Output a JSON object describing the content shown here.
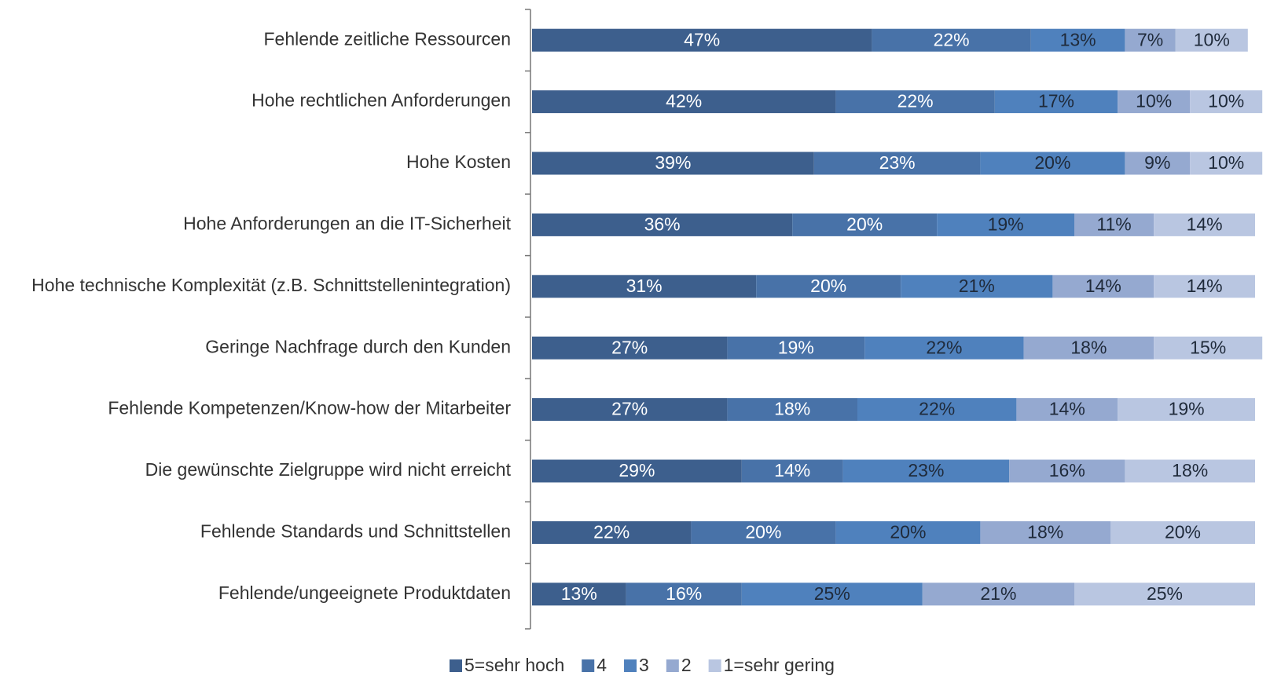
{
  "chart_data": {
    "type": "stacked_barh",
    "categories": [
      "Fehlende zeitliche Ressourcen",
      "Hohe rechtlichen Anforderungen",
      "Hohe Kosten",
      "Hohe Anforderungen an die IT-Sicherheit",
      "Hohe technische Komplexität (z.B. Schnittstellenintegration)",
      "Geringe Nachfrage durch den Kunden",
      "Fehlende Kompetenzen/Know-how der Mitarbeiter",
      "Die gewünschte Zielgruppe wird nicht erreicht",
      "Fehlende Standards und Schnittstellen",
      "Fehlende/ungeeignete Produktdaten"
    ],
    "series": [
      {
        "name": "5=sehr hoch",
        "color": "#3d5f8d",
        "label_color": "#ffffff",
        "values": [
          47,
          42,
          39,
          36,
          31,
          27,
          27,
          29,
          22,
          13
        ],
        "value_labels": [
          "47%",
          "42%",
          "39%",
          "36%",
          "31%",
          "27%",
          "27%",
          "29%",
          "22%",
          "13%"
        ]
      },
      {
        "name": "4",
        "color": "#4872a8",
        "label_color": "#ffffff",
        "values": [
          22,
          22,
          23,
          20,
          20,
          19,
          18,
          14,
          20,
          16
        ],
        "value_labels": [
          "22%",
          "22%",
          "23%",
          "20%",
          "20%",
          "19%",
          "18%",
          "14%",
          "20%",
          "16%"
        ]
      },
      {
        "name": "3",
        "color": "#4f81bd",
        "label_color": "#1f2a3a",
        "values": [
          13,
          17,
          20,
          19,
          21,
          22,
          22,
          23,
          20,
          25
        ],
        "value_labels": [
          "13%",
          "17%",
          "20%",
          "19%",
          "21%",
          "22%",
          "22%",
          "23%",
          "20%",
          "25%"
        ]
      },
      {
        "name": "2",
        "color": "#95a9d0",
        "label_color": "#1f2a3a",
        "values": [
          7,
          10,
          9,
          11,
          14,
          18,
          14,
          16,
          18,
          21
        ],
        "value_labels": [
          "7%",
          "10%",
          "9%",
          "11%",
          "14%",
          "18%",
          "14%",
          "16%",
          "18%",
          "21%"
        ]
      },
      {
        "name": "1=sehr gering",
        "color": "#b9c6e1",
        "label_color": "#1f2a3a",
        "values": [
          10,
          10,
          10,
          14,
          14,
          15,
          19,
          18,
          20,
          25
        ],
        "value_labels": [
          "10%",
          "10%",
          "10%",
          "14%",
          "14%",
          "15%",
          "19%",
          "18%",
          "20%",
          "25%"
        ]
      }
    ],
    "legend": "bottom"
  }
}
